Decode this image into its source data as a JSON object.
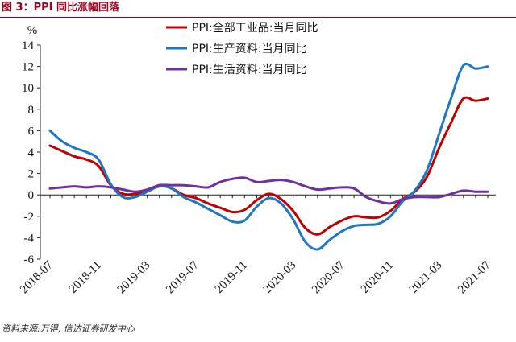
{
  "figure_title": "图 3：PPI 同比涨幅回落",
  "source_note": "资料来源:万得, 信达证券研发中心",
  "chart_data": {
    "type": "line",
    "title": "",
    "ylabel": "%",
    "xlabel": "",
    "ylim": [
      -6,
      14
    ],
    "yticks": [
      -6,
      -4,
      -2,
      0,
      2,
      4,
      6,
      8,
      10,
      12,
      14
    ],
    "x": [
      "2018-07",
      "2018-08",
      "2018-09",
      "2018-10",
      "2018-11",
      "2018-12",
      "2019-01",
      "2019-02",
      "2019-03",
      "2019-04",
      "2019-05",
      "2019-06",
      "2019-07",
      "2019-08",
      "2019-09",
      "2019-10",
      "2019-11",
      "2019-12",
      "2020-01",
      "2020-02",
      "2020-03",
      "2020-04",
      "2020-05",
      "2020-06",
      "2020-07",
      "2020-08",
      "2020-09",
      "2020-10",
      "2020-11",
      "2020-12",
      "2021-01",
      "2021-02",
      "2021-03",
      "2021-04",
      "2021-05",
      "2021-06",
      "2021-07"
    ],
    "xtick_labels": [
      "2018-07",
      "2018-11",
      "2019-03",
      "2019-07",
      "2019-11",
      "2020-03",
      "2020-07",
      "2020-11",
      "2021-03",
      "2021-07"
    ],
    "grid": false,
    "legend_position": "top",
    "series": [
      {
        "name": "PPI:全部工业品:当月同比",
        "color": "#c00000",
        "values": [
          4.6,
          4.1,
          3.6,
          3.3,
          2.7,
          0.9,
          0.1,
          0.1,
          0.4,
          0.9,
          0.6,
          0.0,
          -0.3,
          -0.8,
          -1.2,
          -1.6,
          -1.4,
          -0.5,
          0.1,
          -0.4,
          -1.5,
          -3.1,
          -3.7,
          -3.0,
          -2.4,
          -2.0,
          -2.1,
          -2.1,
          -1.5,
          -0.4,
          0.3,
          1.7,
          4.4,
          6.8,
          9.0,
          8.8,
          9.0
        ]
      },
      {
        "name": "PPI:生产资料:当月同比",
        "color": "#1f77c4",
        "values": [
          6.0,
          5.0,
          4.4,
          4.0,
          3.3,
          1.0,
          -0.2,
          -0.2,
          0.3,
          0.8,
          0.6,
          -0.2,
          -0.7,
          -1.3,
          -1.9,
          -2.5,
          -2.4,
          -1.1,
          -0.3,
          -0.8,
          -2.3,
          -4.4,
          -5.1,
          -4.2,
          -3.4,
          -2.9,
          -2.8,
          -2.7,
          -2.0,
          -0.6,
          0.4,
          2.3,
          5.7,
          9.1,
          12.1,
          11.8,
          12.0
        ]
      },
      {
        "name": "PPI:生活资料:当月同比",
        "color": "#7030a0",
        "values": [
          0.6,
          0.7,
          0.8,
          0.7,
          0.8,
          0.7,
          0.5,
          0.3,
          0.5,
          0.9,
          0.9,
          0.9,
          0.8,
          0.7,
          1.2,
          1.5,
          1.6,
          1.2,
          1.3,
          1.4,
          1.2,
          0.8,
          0.5,
          0.6,
          0.7,
          0.6,
          -0.2,
          -0.6,
          -0.8,
          -0.4,
          -0.2,
          -0.2,
          -0.2,
          0.1,
          0.4,
          0.3,
          0.3
        ]
      }
    ]
  }
}
